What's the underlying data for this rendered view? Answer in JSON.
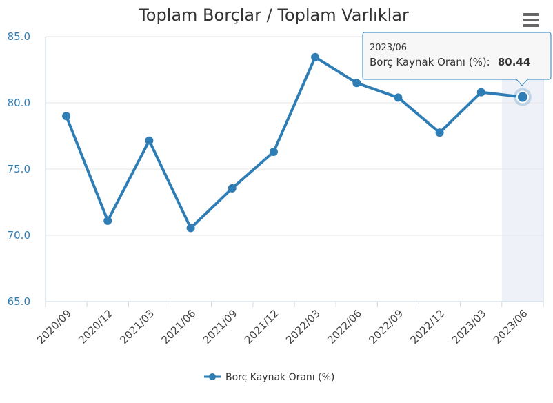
{
  "colors": {
    "series": "#2e7db5",
    "grid": "#e6e6e6",
    "axis": "#c6d6e2",
    "highlight_band": "#eef2f8",
    "tooltip_border": "#2e7db5",
    "tooltip_bg": "#f7f7f7"
  },
  "menu_icon": "hamburger-menu-icon",
  "chart_data": {
    "type": "line",
    "title": "Toplam Borçlar / Toplam Varlıklar",
    "xlabel": "",
    "ylabel": "",
    "categories": [
      "2020/09",
      "2020/12",
      "2021/03",
      "2021/06",
      "2021/09",
      "2021/12",
      "2022/03",
      "2022/06",
      "2022/09",
      "2022/12",
      "2023/03",
      "2023/06"
    ],
    "series": [
      {
        "name": "Borç Kaynak Oranı (%)",
        "values": [
          79.0,
          71.1,
          77.15,
          70.55,
          73.55,
          76.3,
          83.45,
          81.5,
          80.4,
          77.75,
          80.8,
          80.44
        ]
      }
    ],
    "ylim": [
      65,
      85
    ],
    "yticks": [
      "65.0",
      "70.0",
      "75.0",
      "80.0",
      "85.0"
    ],
    "grid": true,
    "legend": "bottom-center",
    "tooltip": {
      "category": "2023/06",
      "series_label": "Borç Kaynak Oranı (%):",
      "value": "80.44"
    }
  }
}
